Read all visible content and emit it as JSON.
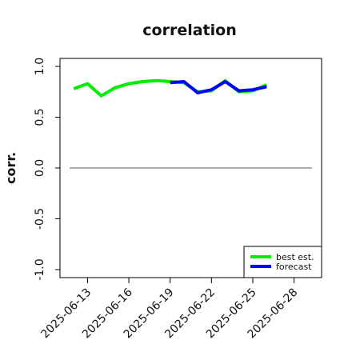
{
  "chart_data": {
    "type": "line",
    "title": "correlation",
    "ylabel": "corr.",
    "xlabel": "",
    "ylim": [
      -1.0,
      1.0
    ],
    "xlim": [
      "2025-06-11",
      "2025-06-30"
    ],
    "yticks": [
      "-1.0",
      "-0.5",
      "0.0",
      "0.5",
      "1.0"
    ],
    "xticks": [
      "2025-06-13",
      "2025-06-16",
      "2025-06-19",
      "2025-06-22",
      "2025-06-25",
      "2025-06-28"
    ],
    "highlighted_xtick": "2025-06-19",
    "highlight_color": "#228b22",
    "grid": false,
    "legend_position": "lower-right",
    "reference_line": 0.0,
    "series": [
      {
        "name": "best est.",
        "color": "#00ee00",
        "x": [
          "2025-06-12",
          "2025-06-13",
          "2025-06-14",
          "2025-06-15",
          "2025-06-16",
          "2025-06-17",
          "2025-06-18",
          "2025-06-19",
          "2025-06-20",
          "2025-06-21",
          "2025-06-22",
          "2025-06-23",
          "2025-06-24",
          "2025-06-25",
          "2025-06-26"
        ],
        "values": [
          0.78,
          0.83,
          0.71,
          0.79,
          0.83,
          0.85,
          0.86,
          0.85,
          0.84,
          0.75,
          0.76,
          0.86,
          0.75,
          0.76,
          0.82
        ]
      },
      {
        "name": "forecast",
        "color": "#0000ff",
        "x": [
          "2025-06-19",
          "2025-06-20",
          "2025-06-21",
          "2025-06-22",
          "2025-06-23",
          "2025-06-24",
          "2025-06-25",
          "2025-06-26"
        ],
        "values": [
          0.84,
          0.85,
          0.74,
          0.77,
          0.85,
          0.76,
          0.77,
          0.8
        ]
      }
    ]
  }
}
